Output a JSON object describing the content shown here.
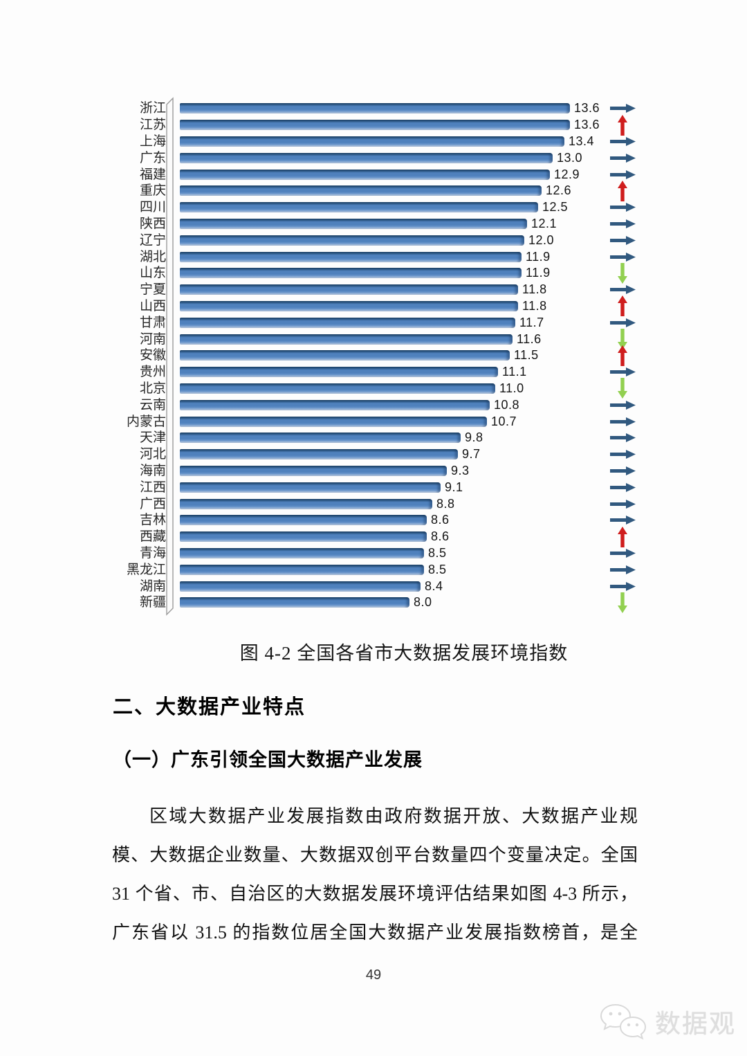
{
  "figure": {
    "caption": "图 4-2 全国各省市大数据发展环境指数"
  },
  "chart_data": {
    "type": "bar",
    "orientation": "horizontal",
    "title": "图 4-2 全国各省市大数据发展环境指数",
    "value_axis_range": [
      0,
      14
    ],
    "grid": false,
    "legend": "none",
    "bar_color": "#4f81bd",
    "trend_arrow_colors": {
      "flat": "#31597f",
      "up": "#cf1d1d",
      "down": "#92d050"
    },
    "series": [
      {
        "name": "浙江",
        "value": 13.6,
        "label": "13.6",
        "trend": "flat"
      },
      {
        "name": "江苏",
        "value": 13.6,
        "label": "13.6",
        "trend": "up"
      },
      {
        "name": "上海",
        "value": 13.4,
        "label": "13.4",
        "trend": "flat"
      },
      {
        "name": "广东",
        "value": 13.0,
        "label": "13.0",
        "trend": "flat"
      },
      {
        "name": "福建",
        "value": 12.9,
        "label": "12.9",
        "trend": "flat"
      },
      {
        "name": "重庆",
        "value": 12.6,
        "label": "12.6",
        "trend": "up"
      },
      {
        "name": "四川",
        "value": 12.5,
        "label": "12.5",
        "trend": "flat"
      },
      {
        "name": "陕西",
        "value": 12.1,
        "label": "12.1",
        "trend": "flat"
      },
      {
        "name": "辽宁",
        "value": 12.0,
        "label": "12.0",
        "trend": "flat"
      },
      {
        "name": "湖北",
        "value": 11.9,
        "label": "11.9",
        "trend": "flat"
      },
      {
        "name": "山东",
        "value": 11.9,
        "label": "11.9",
        "trend": "down"
      },
      {
        "name": "宁夏",
        "value": 11.8,
        "label": "11.8",
        "trend": "flat"
      },
      {
        "name": "山西",
        "value": 11.8,
        "label": "11.8",
        "trend": "up"
      },
      {
        "name": "甘肃",
        "value": 11.7,
        "label": "11.7",
        "trend": "flat"
      },
      {
        "name": "河南",
        "value": 11.6,
        "label": "11.6",
        "trend": "down"
      },
      {
        "name": "安徽",
        "value": 11.5,
        "label": "11.5",
        "trend": "up"
      },
      {
        "name": "贵州",
        "value": 11.1,
        "label": "11.1",
        "trend": "flat"
      },
      {
        "name": "北京",
        "value": 11.0,
        "label": "11.0",
        "trend": "down"
      },
      {
        "name": "云南",
        "value": 10.8,
        "label": "10.8",
        "trend": "flat"
      },
      {
        "name": "内蒙古",
        "value": 10.7,
        "label": "10.7",
        "trend": "flat"
      },
      {
        "name": "天津",
        "value": 9.8,
        "label": "9.8",
        "trend": "flat"
      },
      {
        "name": "河北",
        "value": 9.7,
        "label": "9.7",
        "trend": "flat"
      },
      {
        "name": "海南",
        "value": 9.3,
        "label": "9.3",
        "trend": "flat"
      },
      {
        "name": "江西",
        "value": 9.1,
        "label": "9.1",
        "trend": "flat"
      },
      {
        "name": "广西",
        "value": 8.8,
        "label": "8.8",
        "trend": "flat"
      },
      {
        "name": "吉林",
        "value": 8.6,
        "label": "8.6",
        "trend": "flat"
      },
      {
        "name": "西藏",
        "value": 8.6,
        "label": "8.6",
        "trend": "up"
      },
      {
        "name": "青海",
        "value": 8.5,
        "label": "8.5",
        "trend": "flat"
      },
      {
        "name": "黑龙江",
        "value": 8.5,
        "label": "8.5",
        "trend": "flat"
      },
      {
        "name": "湖南",
        "value": 8.4,
        "label": "8.4",
        "trend": "flat"
      },
      {
        "name": "新疆",
        "value": 8.0,
        "label": "8.0",
        "trend": "down"
      }
    ]
  },
  "section": {
    "heading": "二、大数据产业特点",
    "subheading": "（一）广东引领全国大数据产业发展"
  },
  "paragraph": {
    "lines": [
      "区域大数据产业发展指数由政府数据开放、大数据产业规",
      "模、大数据企业数量、大数据双创平台数量四个变量决定。全国",
      "31 个省、市、自治区的大数据发展环境评估结果如图 4-3 所示，",
      "广东省以 31.5 的指数位居全国大数据产业发展指数榜首，是全"
    ]
  },
  "footer": {
    "page_number": "49",
    "watermark": "数据观"
  }
}
